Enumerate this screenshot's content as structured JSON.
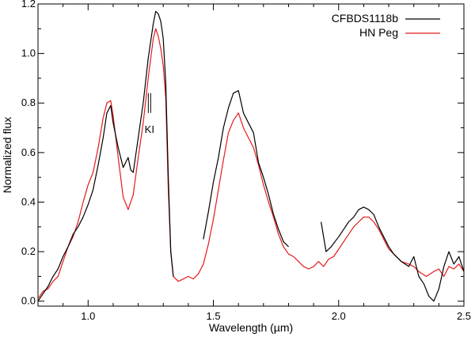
{
  "chart_data": {
    "type": "line",
    "title": "",
    "xlabel": "Wavelength (µm)",
    "ylabel": "Normalized flux",
    "xlim": [
      0.8,
      2.5
    ],
    "ylim": [
      -0.02,
      1.2
    ],
    "x_ticks": [
      {
        "value": 1.0,
        "label": "1.0"
      },
      {
        "value": 1.5,
        "label": "1.5"
      },
      {
        "value": 2.0,
        "label": "2.0"
      },
      {
        "value": 2.5,
        "label": "2.5"
      }
    ],
    "y_ticks": [
      {
        "value": 0.0,
        "label": "0.0"
      },
      {
        "value": 0.2,
        "label": "0.2"
      },
      {
        "value": 0.4,
        "label": "0.4"
      },
      {
        "value": 0.6,
        "label": "0.6"
      },
      {
        "value": 0.8,
        "label": "0.8"
      },
      {
        "value": 1.0,
        "label": "1.0"
      },
      {
        "value": 1.2,
        "label": "1.2"
      }
    ],
    "grid": false,
    "legend_position": "top-right",
    "annotations": [
      {
        "text": "KI",
        "x": 1.245,
        "y": 0.68,
        "marker_y": [
          0.76,
          0.84
        ]
      }
    ],
    "series": [
      {
        "name": "CFBDS1118b",
        "color": "#000000",
        "segments": [
          [
            [
              0.8,
              0.0
            ],
            [
              0.82,
              0.03
            ],
            [
              0.84,
              0.06
            ],
            [
              0.86,
              0.1
            ],
            [
              0.88,
              0.13
            ],
            [
              0.9,
              0.18
            ],
            [
              0.92,
              0.22
            ],
            [
              0.94,
              0.27
            ],
            [
              0.96,
              0.3
            ],
            [
              0.98,
              0.34
            ],
            [
              1.0,
              0.39
            ],
            [
              1.02,
              0.45
            ],
            [
              1.04,
              0.55
            ],
            [
              1.06,
              0.66
            ],
            [
              1.075,
              0.76
            ],
            [
              1.09,
              0.79
            ],
            [
              1.1,
              0.72
            ],
            [
              1.12,
              0.62
            ],
            [
              1.14,
              0.54
            ],
            [
              1.16,
              0.58
            ],
            [
              1.17,
              0.53
            ],
            [
              1.18,
              0.52
            ],
            [
              1.2,
              0.66
            ],
            [
              1.22,
              0.8
            ],
            [
              1.24,
              0.98
            ],
            [
              1.26,
              1.12
            ],
            [
              1.27,
              1.17
            ],
            [
              1.28,
              1.16
            ],
            [
              1.29,
              1.13
            ],
            [
              1.3,
              1.06
            ],
            [
              1.31,
              0.88
            ],
            [
              1.32,
              0.5
            ],
            [
              1.33,
              0.2
            ],
            [
              1.34,
              0.1
            ]
          ],
          [
            [
              1.46,
              0.25
            ],
            [
              1.48,
              0.36
            ],
            [
              1.5,
              0.48
            ],
            [
              1.52,
              0.58
            ],
            [
              1.54,
              0.7
            ],
            [
              1.56,
              0.78
            ],
            [
              1.58,
              0.84
            ],
            [
              1.6,
              0.85
            ],
            [
              1.62,
              0.76
            ],
            [
              1.64,
              0.72
            ],
            [
              1.66,
              0.68
            ],
            [
              1.68,
              0.56
            ],
            [
              1.7,
              0.5
            ],
            [
              1.72,
              0.43
            ],
            [
              1.74,
              0.35
            ],
            [
              1.76,
              0.29
            ],
            [
              1.78,
              0.24
            ],
            [
              1.8,
              0.22
            ]
          ],
          [
            [
              1.93,
              0.32
            ],
            [
              1.95,
              0.2
            ],
            [
              1.97,
              0.22
            ],
            [
              2.0,
              0.26
            ],
            [
              2.02,
              0.29
            ],
            [
              2.04,
              0.32
            ],
            [
              2.06,
              0.34
            ],
            [
              2.08,
              0.37
            ],
            [
              2.1,
              0.38
            ],
            [
              2.12,
              0.37
            ],
            [
              2.14,
              0.35
            ],
            [
              2.16,
              0.3
            ],
            [
              2.18,
              0.26
            ],
            [
              2.2,
              0.22
            ],
            [
              2.22,
              0.19
            ],
            [
              2.25,
              0.16
            ],
            [
              2.28,
              0.14
            ],
            [
              2.3,
              0.18
            ],
            [
              2.32,
              0.1
            ],
            [
              2.34,
              0.07
            ],
            [
              2.36,
              0.02
            ],
            [
              2.38,
              0.0
            ],
            [
              2.4,
              0.05
            ],
            [
              2.42,
              0.14
            ],
            [
              2.44,
              0.2
            ],
            [
              2.46,
              0.15
            ],
            [
              2.48,
              0.18
            ],
            [
              2.5,
              0.12
            ]
          ]
        ]
      },
      {
        "name": "HN Peg",
        "color": "#e41a1c",
        "segments": [
          [
            [
              0.8,
              0.01
            ],
            [
              0.82,
              0.04
            ],
            [
              0.84,
              0.05
            ],
            [
              0.86,
              0.08
            ],
            [
              0.88,
              0.1
            ],
            [
              0.9,
              0.16
            ],
            [
              0.92,
              0.22
            ],
            [
              0.94,
              0.26
            ],
            [
              0.96,
              0.32
            ],
            [
              0.98,
              0.4
            ],
            [
              1.0,
              0.47
            ],
            [
              1.02,
              0.52
            ],
            [
              1.04,
              0.62
            ],
            [
              1.06,
              0.74
            ],
            [
              1.075,
              0.8
            ],
            [
              1.09,
              0.81
            ],
            [
              1.1,
              0.75
            ],
            [
              1.12,
              0.58
            ],
            [
              1.14,
              0.42
            ],
            [
              1.16,
              0.37
            ],
            [
              1.18,
              0.43
            ],
            [
              1.2,
              0.58
            ],
            [
              1.22,
              0.72
            ],
            [
              1.24,
              0.9
            ],
            [
              1.26,
              1.06
            ],
            [
              1.27,
              1.1
            ],
            [
              1.28,
              1.07
            ],
            [
              1.29,
              1.02
            ],
            [
              1.3,
              0.95
            ],
            [
              1.31,
              0.82
            ],
            [
              1.32,
              0.45
            ],
            [
              1.33,
              0.2
            ],
            [
              1.34,
              0.1
            ],
            [
              1.36,
              0.08
            ],
            [
              1.38,
              0.09
            ],
            [
              1.4,
              0.1
            ],
            [
              1.42,
              0.09
            ],
            [
              1.44,
              0.11
            ],
            [
              1.46,
              0.15
            ],
            [
              1.48,
              0.23
            ],
            [
              1.5,
              0.33
            ],
            [
              1.52,
              0.45
            ],
            [
              1.54,
              0.57
            ],
            [
              1.56,
              0.68
            ],
            [
              1.58,
              0.73
            ],
            [
              1.6,
              0.76
            ],
            [
              1.62,
              0.7
            ],
            [
              1.64,
              0.66
            ],
            [
              1.66,
              0.62
            ],
            [
              1.68,
              0.55
            ],
            [
              1.7,
              0.47
            ],
            [
              1.72,
              0.4
            ],
            [
              1.74,
              0.34
            ],
            [
              1.76,
              0.27
            ],
            [
              1.78,
              0.22
            ],
            [
              1.8,
              0.19
            ],
            [
              1.82,
              0.18
            ],
            [
              1.84,
              0.16
            ],
            [
              1.86,
              0.14
            ],
            [
              1.88,
              0.13
            ],
            [
              1.9,
              0.14
            ],
            [
              1.92,
              0.16
            ],
            [
              1.94,
              0.14
            ],
            [
              1.96,
              0.17
            ],
            [
              1.98,
              0.18
            ],
            [
              2.0,
              0.21
            ],
            [
              2.02,
              0.24
            ],
            [
              2.04,
              0.27
            ],
            [
              2.06,
              0.3
            ],
            [
              2.08,
              0.32
            ],
            [
              2.1,
              0.34
            ],
            [
              2.12,
              0.34
            ],
            [
              2.14,
              0.32
            ],
            [
              2.16,
              0.29
            ],
            [
              2.18,
              0.25
            ],
            [
              2.2,
              0.21
            ],
            [
              2.22,
              0.19
            ],
            [
              2.25,
              0.16
            ],
            [
              2.28,
              0.15
            ],
            [
              2.3,
              0.14
            ],
            [
              2.32,
              0.12
            ],
            [
              2.35,
              0.1
            ],
            [
              2.38,
              0.12
            ],
            [
              2.4,
              0.13
            ],
            [
              2.42,
              0.1
            ],
            [
              2.44,
              0.14
            ],
            [
              2.46,
              0.13
            ],
            [
              2.48,
              0.15
            ],
            [
              2.5,
              0.12
            ]
          ]
        ]
      }
    ]
  }
}
